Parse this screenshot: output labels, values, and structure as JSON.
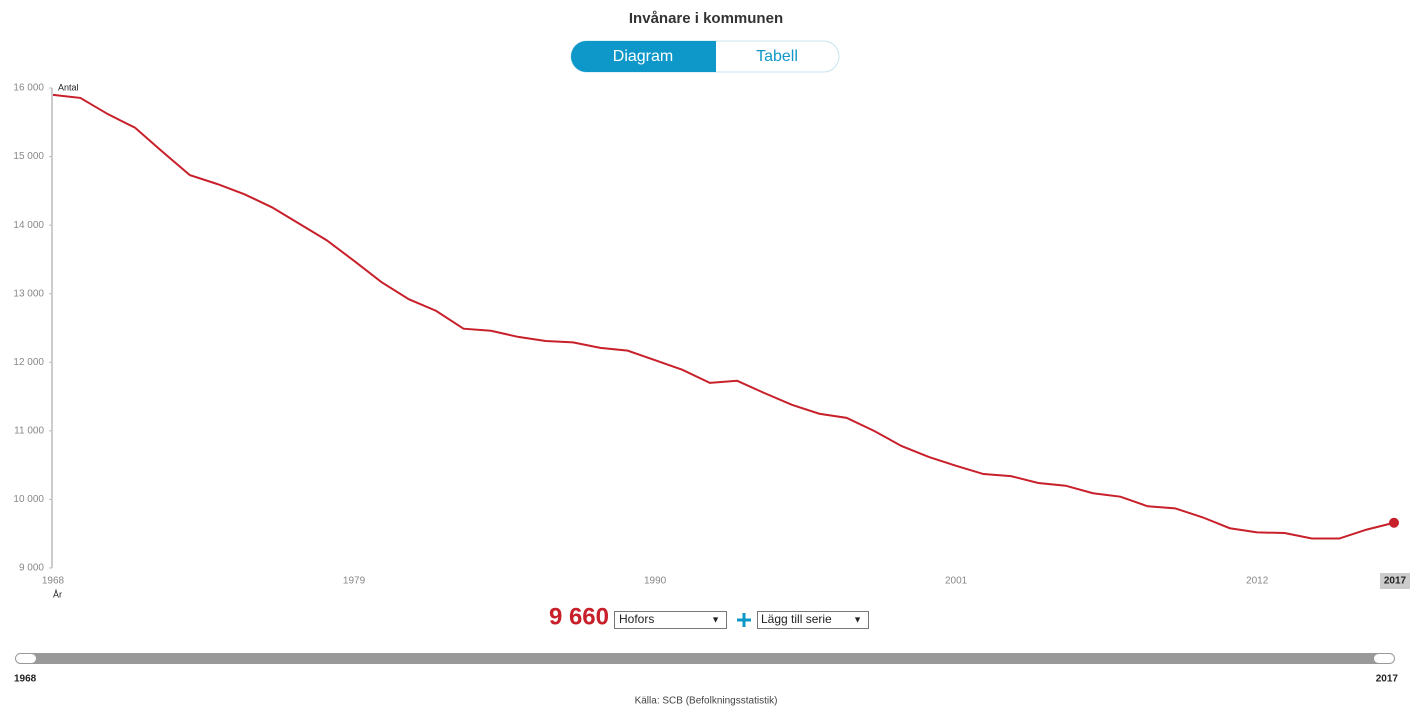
{
  "ui": {
    "tabs": [
      "Diagram",
      "Tabell"
    ],
    "selected_value": "9 660",
    "municipality": "Hofors",
    "add_series": "Lägg till serie",
    "range_start": "1968",
    "range_end": "2017",
    "source": "Källa: SCB (Befolkningsstatistik)"
  },
  "chart_data": {
    "type": "line",
    "title": "Invånare i kommunen",
    "y_label": "Antal",
    "x_label": "År",
    "x": [
      1968,
      1969,
      1970,
      1971,
      1972,
      1973,
      1974,
      1975,
      1976,
      1977,
      1978,
      1979,
      1980,
      1981,
      1982,
      1983,
      1984,
      1985,
      1986,
      1987,
      1988,
      1989,
      1990,
      1991,
      1992,
      1993,
      1994,
      1995,
      1996,
      1997,
      1998,
      1999,
      2000,
      2001,
      2002,
      2003,
      2004,
      2005,
      2006,
      2007,
      2008,
      2009,
      2010,
      2011,
      2012,
      2013,
      2014,
      2015,
      2016,
      2017
    ],
    "series": [
      {
        "name": "Hofors",
        "color": "#c8202a",
        "values": [
          15900,
          15855,
          15620,
          15420,
          15070,
          14730,
          14600,
          14450,
          14260,
          14020,
          13780,
          13480,
          13170,
          12920,
          12750,
          12490,
          12460,
          12370,
          12310,
          12290,
          12210,
          12170,
          12030,
          11890,
          11700,
          11730,
          11550,
          11380,
          11250,
          11190,
          11000,
          10780,
          10620,
          10490,
          10370,
          10340,
          10240,
          10200,
          10090,
          10040,
          9900,
          9870,
          9740,
          9580,
          9520,
          9510,
          9430,
          9430,
          9560,
          9660
        ]
      }
    ],
    "xlim": [
      1968,
      2017
    ],
    "xticks": [
      1968,
      1979,
      1990,
      2001,
      2012
    ],
    "highlight_x": 2017,
    "ylim": [
      9000,
      16000
    ],
    "yticks": [
      {
        "value": 9000,
        "label": "9 000"
      },
      {
        "value": 10000,
        "label": "10 000"
      },
      {
        "value": 11000,
        "label": "11 000"
      },
      {
        "value": 12000,
        "label": "12 000"
      },
      {
        "value": 13000,
        "label": "13 000"
      },
      {
        "value": 14000,
        "label": "14 000"
      },
      {
        "value": 15000,
        "label": "15 000"
      },
      {
        "value": 16000,
        "label": "16 000"
      }
    ],
    "grid": false
  }
}
